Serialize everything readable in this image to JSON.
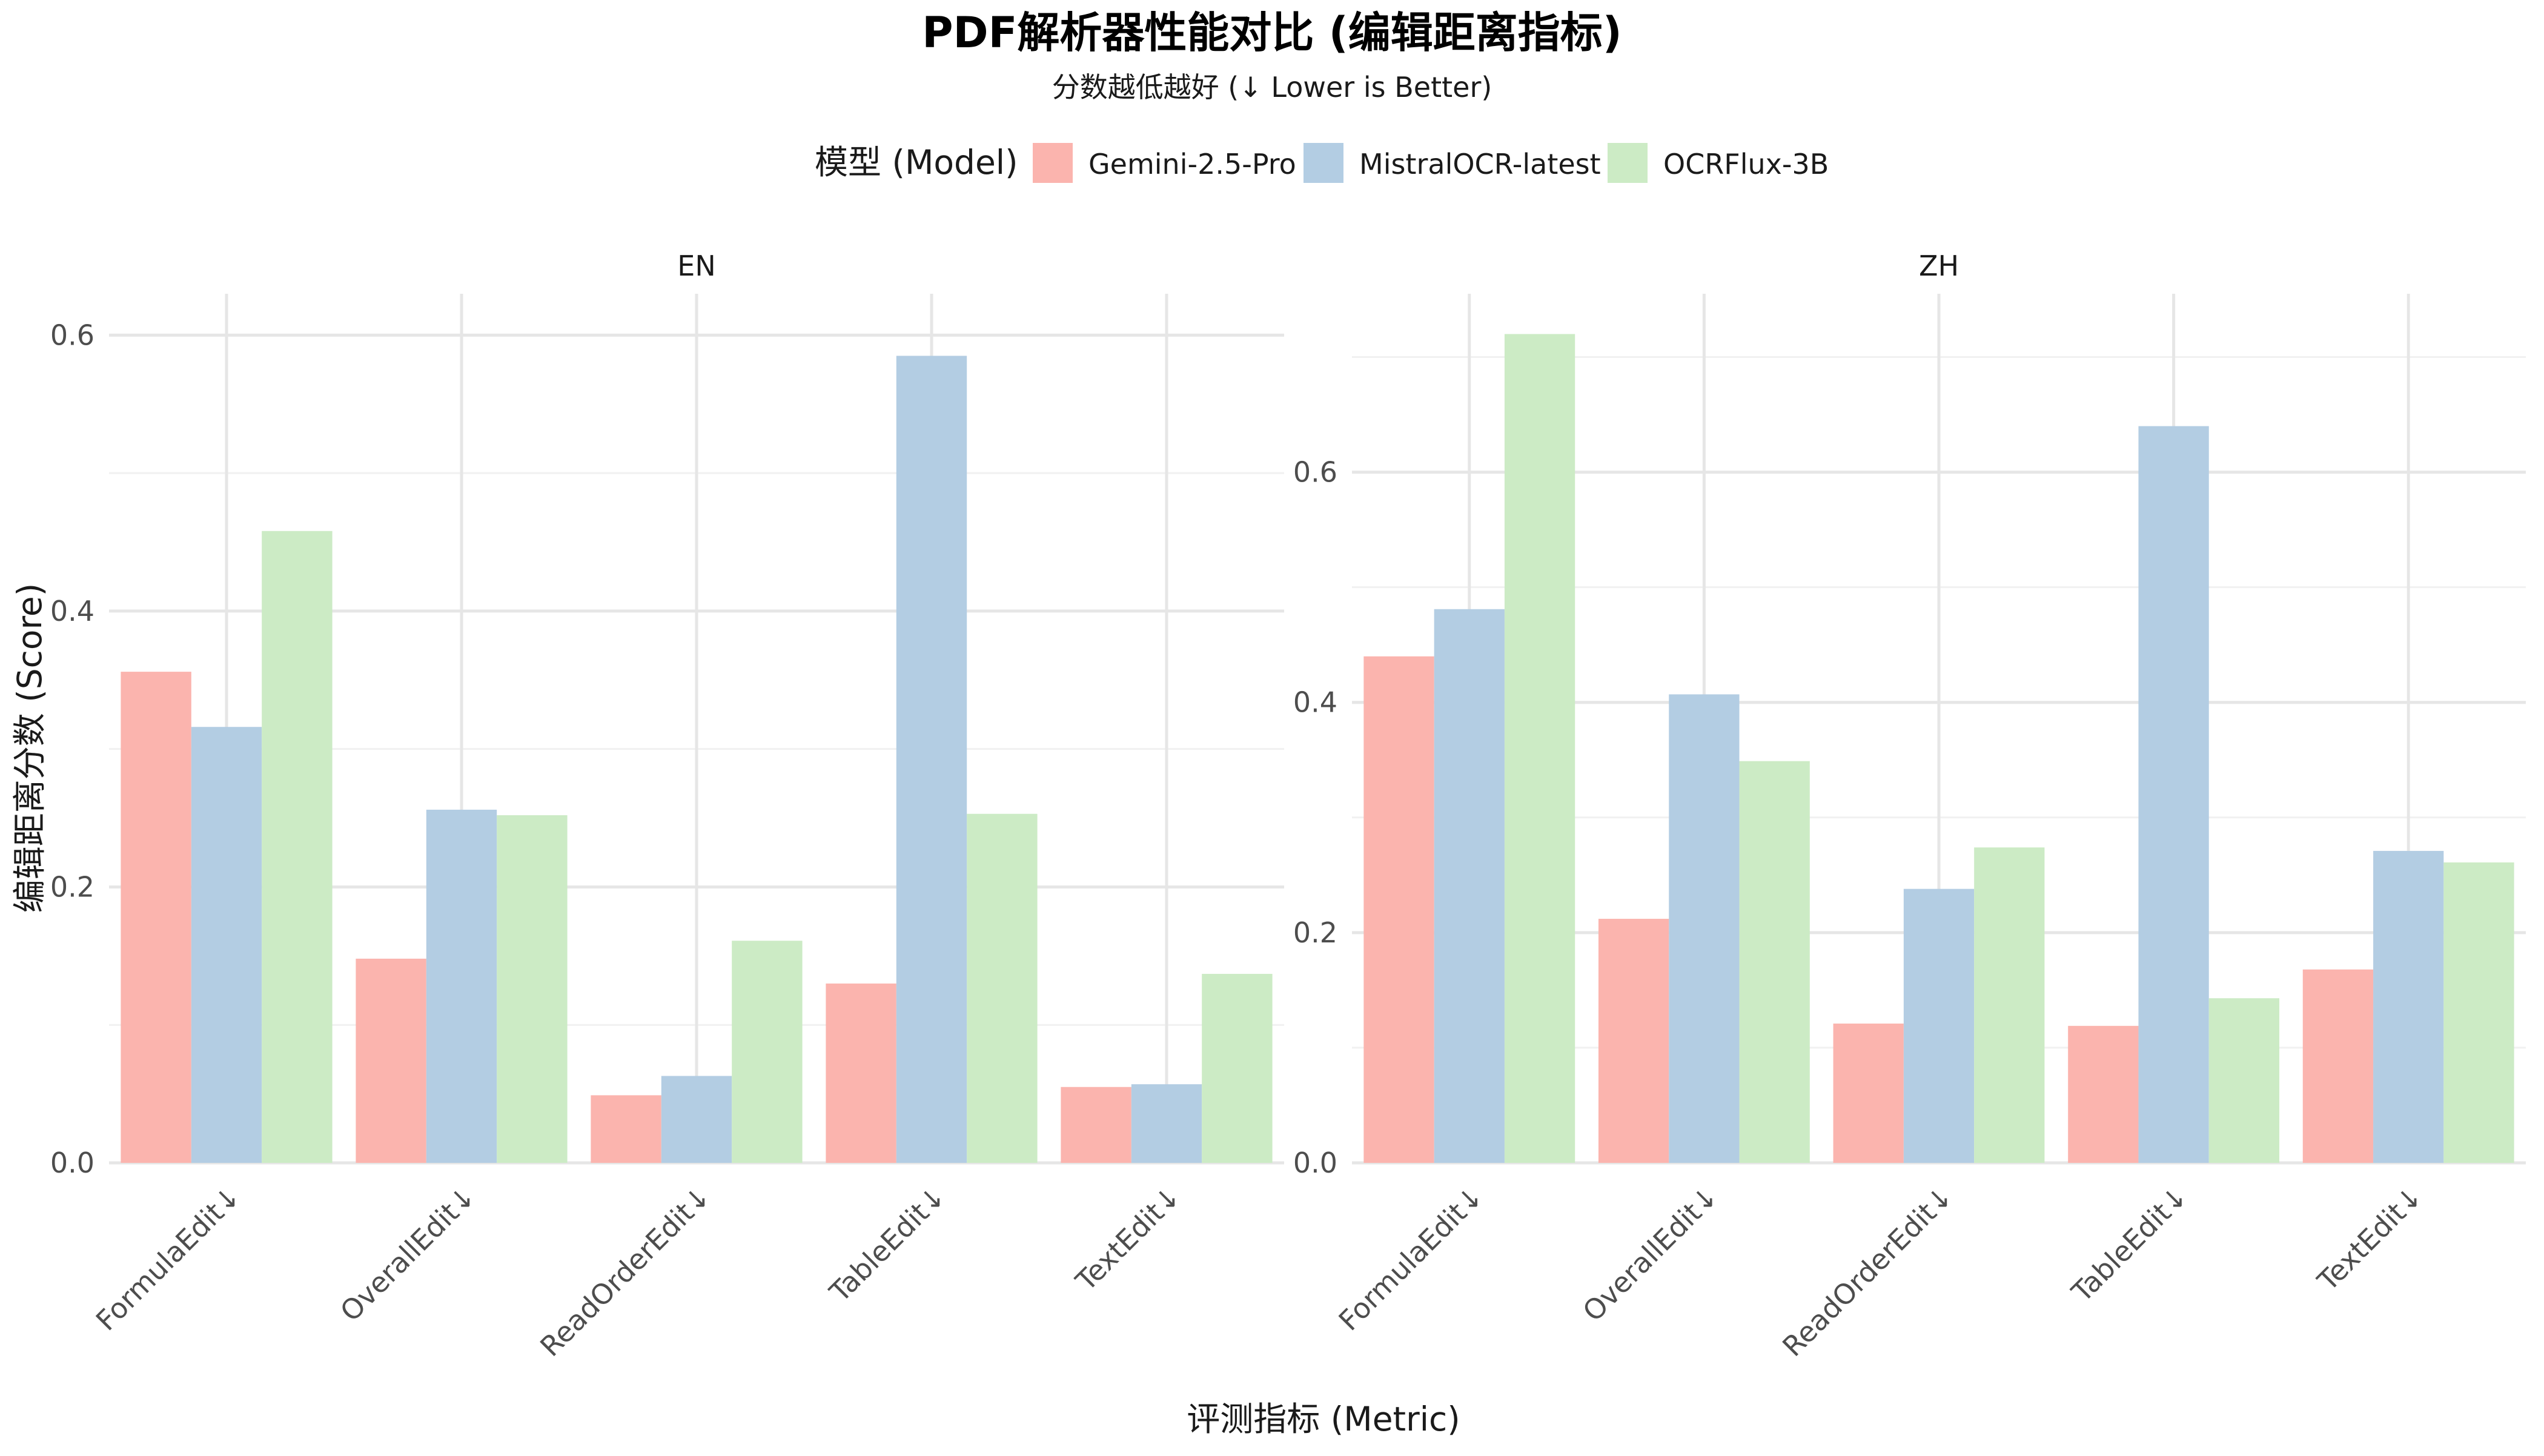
{
  "chart_data": {
    "type": "bar",
    "title": "PDF解析器性能对比 (编辑距离指标)",
    "subtitle": "分数越低越好 (↓ Lower is Better)",
    "xlabel": "评测指标 (Metric)",
    "ylabel": "编辑距离分数 (Score)",
    "legend": {
      "title": "模型 (Model)",
      "position": "top"
    },
    "grid": true,
    "categories": [
      "FormulaEdit↓",
      "OverallEdit↓",
      "ReadOrderEdit↓",
      "TableEdit↓",
      "TextEdit↓"
    ],
    "series_names": [
      "Gemini-2.5-Pro",
      "MistralOCR-latest",
      "OCRFlux-3B"
    ],
    "series_colors": [
      "#FBB4AE",
      "#B3CDE3",
      "#CCEBC5"
    ],
    "panels": [
      {
        "name": "EN",
        "ylim": [
          0,
          0.63
        ],
        "yticks": [
          0.0,
          0.2,
          0.4,
          0.6
        ],
        "series": [
          {
            "name": "Gemini-2.5-Pro",
            "values": [
              0.356,
              0.148,
              0.049,
              0.13,
              0.055
            ]
          },
          {
            "name": "MistralOCR-latest",
            "values": [
              0.316,
              0.256,
              0.063,
              0.585,
              0.057
            ]
          },
          {
            "name": "OCRFlux-3B",
            "values": [
              0.458,
              0.252,
              0.161,
              0.253,
              0.137
            ]
          }
        ]
      },
      {
        "name": "ZH",
        "ylim": [
          0,
          0.755
        ],
        "yticks": [
          0.0,
          0.2,
          0.4,
          0.6
        ],
        "series": [
          {
            "name": "Gemini-2.5-Pro",
            "values": [
              0.44,
              0.212,
              0.121,
              0.119,
              0.168
            ]
          },
          {
            "name": "MistralOCR-latest",
            "values": [
              0.481,
              0.407,
              0.238,
              0.64,
              0.271
            ]
          },
          {
            "name": "OCRFlux-3B",
            "values": [
              0.72,
              0.349,
              0.274,
              0.143,
              0.261
            ]
          }
        ]
      }
    ]
  }
}
